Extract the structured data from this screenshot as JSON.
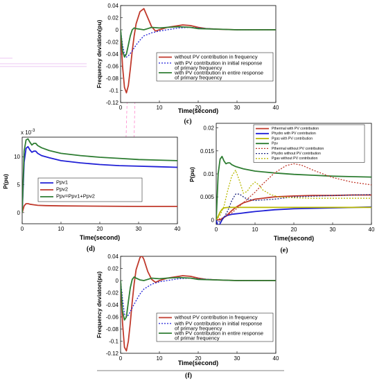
{
  "colors": {
    "red": "#c0392b",
    "green": "#2e7d32",
    "blue": "#1f1fd6",
    "navy": "#1a237e",
    "yellow": "#b8b800",
    "pink": "#ff88cc"
  },
  "chart_data": [
    {
      "id": "c",
      "type": "line",
      "panel_label": "(c)",
      "xlabel": "Time(second)",
      "ylabel": "Frequency deviation(pu)",
      "xlim": [
        0,
        40
      ],
      "ylim": [
        -0.12,
        0.04
      ],
      "xticks": [
        "0",
        "10",
        "20",
        "30",
        "40"
      ],
      "yticks": [
        "-0.12",
        "-0.1",
        "-0.08",
        "-0.06",
        "-0.04",
        "-0.02",
        "0",
        "0.02",
        "0.04"
      ],
      "legend_lines": [
        [
          "without PV contribution in frequency"
        ],
        [
          "with PV contribution in initial response",
          "of primary frequency"
        ],
        [
          "with PV contribution in entire response",
          "of primary frequency"
        ]
      ],
      "series": [
        {
          "name": "without PV contribution in frequency",
          "color": "red",
          "dash": "solid",
          "x": [
            0,
            0.5,
            1,
            1.5,
            2,
            2.5,
            3,
            3.5,
            4,
            5,
            6,
            7,
            8,
            9,
            10,
            12,
            14,
            16,
            18,
            20,
            22,
            25,
            30,
            35,
            40
          ],
          "y": [
            0,
            -0.06,
            -0.095,
            -0.104,
            -0.092,
            -0.065,
            -0.035,
            -0.01,
            0.01,
            0.03,
            0.035,
            0.02,
            0.005,
            -0.002,
            0,
            0.004,
            0.006,
            0.008,
            0.007,
            0.004,
            0.002,
            0.001,
            0,
            0,
            0
          ]
        },
        {
          "name": "with PV contribution in initial response of primary frequency",
          "color": "blue",
          "dash": "dotted",
          "x": [
            0,
            0.5,
            1,
            1.5,
            2,
            3,
            4,
            5,
            6,
            8,
            10,
            12,
            15,
            18,
            20,
            25,
            30,
            40
          ],
          "y": [
            0,
            -0.025,
            -0.04,
            -0.045,
            -0.043,
            -0.035,
            -0.025,
            -0.017,
            -0.01,
            -0.005,
            -0.002,
            0,
            0.003,
            0.004,
            0.003,
            0.001,
            0,
            0
          ]
        },
        {
          "name": "with PV contribution in entire response of primary frequency",
          "color": "green",
          "dash": "solid",
          "x": [
            0,
            0.5,
            1,
            1.5,
            2,
            2.5,
            3,
            3.5,
            4,
            5,
            6,
            7,
            8,
            10,
            12,
            15,
            18,
            20,
            25,
            30,
            40
          ],
          "y": [
            0,
            -0.035,
            -0.045,
            -0.04,
            -0.025,
            -0.01,
            0,
            0.003,
            0.002,
            0.001,
            0,
            0.002,
            0.004,
            0.003,
            0.004,
            0.005,
            0.004,
            0.002,
            0.001,
            0,
            0
          ]
        }
      ]
    },
    {
      "id": "d",
      "type": "line",
      "panel_label": "(d)",
      "xlabel": "Time(second)",
      "ylabel": "P(pu)",
      "exponent_label": "x 10",
      "exponent_power": "-3",
      "xlim": [
        0,
        40
      ],
      "ylim": [
        -2,
        13.5
      ],
      "xticks": [
        "0",
        "10",
        "20",
        "30",
        "40"
      ],
      "yticks": [
        "0",
        "5",
        "10"
      ],
      "legend_lines": [
        [
          "Ppv1"
        ],
        [
          "Ppv2"
        ],
        [
          "Ppv=Ppv1+Ppv2"
        ]
      ],
      "series": [
        {
          "name": "Ppv1",
          "color": "blue",
          "dash": "solid",
          "x": [
            0,
            0.5,
            1,
            1.5,
            2,
            2.5,
            3,
            3.5,
            4,
            5,
            7,
            10,
            15,
            20,
            25,
            30,
            35,
            40
          ],
          "y": [
            0,
            9,
            11.5,
            11.8,
            11.2,
            10.8,
            11,
            11,
            10.6,
            10.2,
            9.8,
            9.3,
            8.9,
            8.6,
            8.4,
            8.3,
            8.2,
            8.1
          ]
        },
        {
          "name": "Ppv2",
          "color": "red",
          "dash": "solid",
          "x": [
            0,
            0.5,
            1,
            1.5,
            2,
            3,
            4,
            6,
            10,
            20,
            30,
            40
          ],
          "y": [
            0,
            1.2,
            1.6,
            1.6,
            1.5,
            1.4,
            1.3,
            1.25,
            1.2,
            1.15,
            1.1,
            1.1
          ]
        },
        {
          "name": "Ppv=Ppv1+Ppv2",
          "color": "green",
          "dash": "solid",
          "x": [
            0,
            0.5,
            1,
            1.5,
            2,
            2.5,
            3,
            3.5,
            4,
            5,
            7,
            10,
            15,
            20,
            25,
            30,
            35,
            40
          ],
          "y": [
            0,
            11,
            13,
            13.2,
            12.6,
            12.1,
            12.4,
            12.4,
            12,
            11.6,
            11.1,
            10.6,
            10.2,
            9.9,
            9.7,
            9.5,
            9.4,
            9.3
          ]
        }
      ]
    },
    {
      "id": "e",
      "type": "line",
      "panel_label": "(e)",
      "xlabel": "Time(second)",
      "ylabel": "P(pu)",
      "xlim": [
        0,
        40
      ],
      "ylim": [
        -0.001,
        0.021
      ],
      "xticks": [
        "0",
        "10",
        "20",
        "30",
        "40"
      ],
      "yticks": [
        "0",
        "0.005",
        "0.01",
        "0.015",
        "0.02"
      ],
      "legend_lines": [
        [
          "Pthermal with PV contribution"
        ],
        [
          "Phydro with PV contribution"
        ],
        [
          "Pgas with PV contribution"
        ],
        [
          "Ppv"
        ],
        [
          "Pthermal without PV contribution"
        ],
        [
          "Phydro without PV contribution"
        ],
        [
          "Pgas without PV contribution"
        ]
      ],
      "series": [
        {
          "name": "Pthermal with PV contribution",
          "color": "red",
          "dash": "solid",
          "x": [
            0,
            1,
            2,
            3,
            4,
            5,
            7,
            10,
            15,
            20,
            25,
            30,
            35,
            40
          ],
          "y": [
            0,
            0,
            0.0005,
            0.0012,
            0.002,
            0.0027,
            0.0037,
            0.0045,
            0.005,
            0.0052,
            0.0053,
            0.0053,
            0.0054,
            0.0054
          ]
        },
        {
          "name": "Phydro with PV contribution",
          "color": "blue",
          "dash": "solid",
          "x": [
            0,
            0.5,
            1,
            1.5,
            2,
            3,
            4,
            5,
            6,
            8,
            10,
            15,
            20,
            30,
            40
          ],
          "y": [
            0,
            -0.0015,
            -0.0008,
            0,
            0.0006,
            0.001,
            0.0012,
            0.0013,
            0.0014,
            0.0016,
            0.0018,
            0.0022,
            0.0024,
            0.0026,
            0.0028
          ]
        },
        {
          "name": "Pgas with PV contribution",
          "color": "yellow",
          "dash": "solid",
          "x": [
            0,
            0.5,
            1,
            1.5,
            2,
            3,
            4,
            5,
            7,
            10,
            15,
            20,
            30,
            40
          ],
          "y": [
            0,
            0.0008,
            0.0017,
            0.0023,
            0.0026,
            0.0027,
            0.0027,
            0.0027,
            0.0027,
            0.0027,
            0.0027,
            0.0027,
            0.0027,
            0.0027
          ]
        },
        {
          "name": "Ppv",
          "color": "green",
          "dash": "solid",
          "x": [
            0,
            0.5,
            1,
            1.5,
            2,
            2.5,
            3,
            3.5,
            4,
            5,
            7,
            10,
            15,
            20,
            25,
            30,
            35,
            40
          ],
          "y": [
            0,
            0.01,
            0.0132,
            0.0138,
            0.0128,
            0.0122,
            0.0124,
            0.0124,
            0.012,
            0.0116,
            0.0111,
            0.0106,
            0.0102,
            0.0099,
            0.0097,
            0.0095,
            0.0094,
            0.0093
          ]
        },
        {
          "name": "Pthermal without PV contribution",
          "color": "red",
          "dash": "dotted",
          "x": [
            0,
            2,
            4,
            6,
            8,
            10,
            12,
            15,
            18,
            20,
            22,
            25,
            30,
            35,
            40
          ],
          "y": [
            0,
            0.0005,
            0.0015,
            0.003,
            0.0045,
            0.006,
            0.0078,
            0.0102,
            0.0118,
            0.0122,
            0.0119,
            0.0108,
            0.0092,
            0.0082,
            0.0076
          ]
        },
        {
          "name": "Phydro without PV contribution",
          "color": "navy",
          "dash": "dotted",
          "x": [
            0,
            1,
            2,
            3,
            4,
            5,
            6,
            7,
            8,
            10,
            15,
            20,
            30,
            40
          ],
          "y": [
            0,
            -0.0005,
            0.0005,
            0.002,
            0.0042,
            0.0056,
            0.0056,
            0.005,
            0.0045,
            0.0042,
            0.0045,
            0.005,
            0.0053,
            0.0055
          ]
        },
        {
          "name": "Pgas without PV contribution",
          "color": "yellow",
          "dash": "dotted",
          "x": [
            0,
            1,
            2,
            3,
            4,
            5,
            6,
            7,
            8,
            9,
            10,
            11,
            12,
            14,
            16,
            20,
            25,
            30,
            40
          ],
          "y": [
            0,
            0.001,
            0.003,
            0.0065,
            0.0095,
            0.0108,
            0.0085,
            0.0058,
            0.0062,
            0.0075,
            0.0082,
            0.0076,
            0.0065,
            0.0055,
            0.005,
            0.0048,
            0.0047,
            0.0047,
            0.0047
          ]
        }
      ]
    },
    {
      "id": "f",
      "type": "line",
      "panel_label": "(f)",
      "xlabel": "Time(second)",
      "ylabel": "Frequency deviaton(pu)",
      "xlim": [
        0,
        40
      ],
      "ylim": [
        -0.12,
        0.04
      ],
      "xticks": [
        "0",
        "10",
        "20",
        "30",
        "40"
      ],
      "yticks": [
        "-0.12",
        "-0.1",
        "-0.08",
        "-0.06",
        "-0.04",
        "-0.02",
        "0",
        "0.02",
        "0.04"
      ],
      "legend_lines": [
        [
          "without PV contribution in frequency"
        ],
        [
          "with PV contribution in initial response",
          "of primary frequency"
        ],
        [
          "with PV contribution in entire response",
          "of  primar frequency"
        ]
      ],
      "series": [
        {
          "name": "without PV contribution in frequency",
          "color": "red",
          "dash": "solid",
          "x": [
            0,
            0.5,
            1,
            1.5,
            2,
            2.5,
            3,
            3.5,
            4,
            5,
            5.5,
            6,
            7,
            8,
            9,
            10,
            12,
            14,
            16,
            18,
            20,
            22,
            25,
            30,
            35,
            40
          ],
          "y": [
            0,
            -0.07,
            -0.11,
            -0.116,
            -0.1,
            -0.07,
            -0.035,
            -0.005,
            0.018,
            0.038,
            0.041,
            0.035,
            0.015,
            0.002,
            -0.003,
            0,
            0.004,
            0.006,
            0.008,
            0.007,
            0.004,
            0.002,
            0.001,
            0,
            0,
            0
          ]
        },
        {
          "name": "with PV contribution in initial response of primary frequency",
          "color": "blue",
          "dash": "dotted",
          "x": [
            0,
            0.5,
            1,
            1.5,
            2,
            3,
            4,
            5,
            6,
            8,
            10,
            12,
            15,
            18,
            20,
            25,
            30,
            40
          ],
          "y": [
            0,
            -0.03,
            -0.055,
            -0.06,
            -0.057,
            -0.045,
            -0.033,
            -0.022,
            -0.014,
            -0.006,
            -0.002,
            0,
            0.003,
            0.004,
            0.003,
            0.001,
            0,
            0
          ]
        },
        {
          "name": "with PV contribution in entire response of  primar frequency",
          "color": "green",
          "dash": "solid",
          "x": [
            0,
            0.5,
            1,
            1.5,
            2,
            2.5,
            3,
            3.5,
            4,
            5,
            6,
            7,
            8,
            10,
            12,
            15,
            18,
            20,
            25,
            30,
            40
          ],
          "y": [
            0,
            -0.05,
            -0.065,
            -0.06,
            -0.035,
            -0.012,
            0.002,
            0.006,
            0.004,
            0.001,
            0,
            0.002,
            0.004,
            0.003,
            0.004,
            0.005,
            0.004,
            0.002,
            0.001,
            0,
            0
          ]
        }
      ]
    }
  ]
}
